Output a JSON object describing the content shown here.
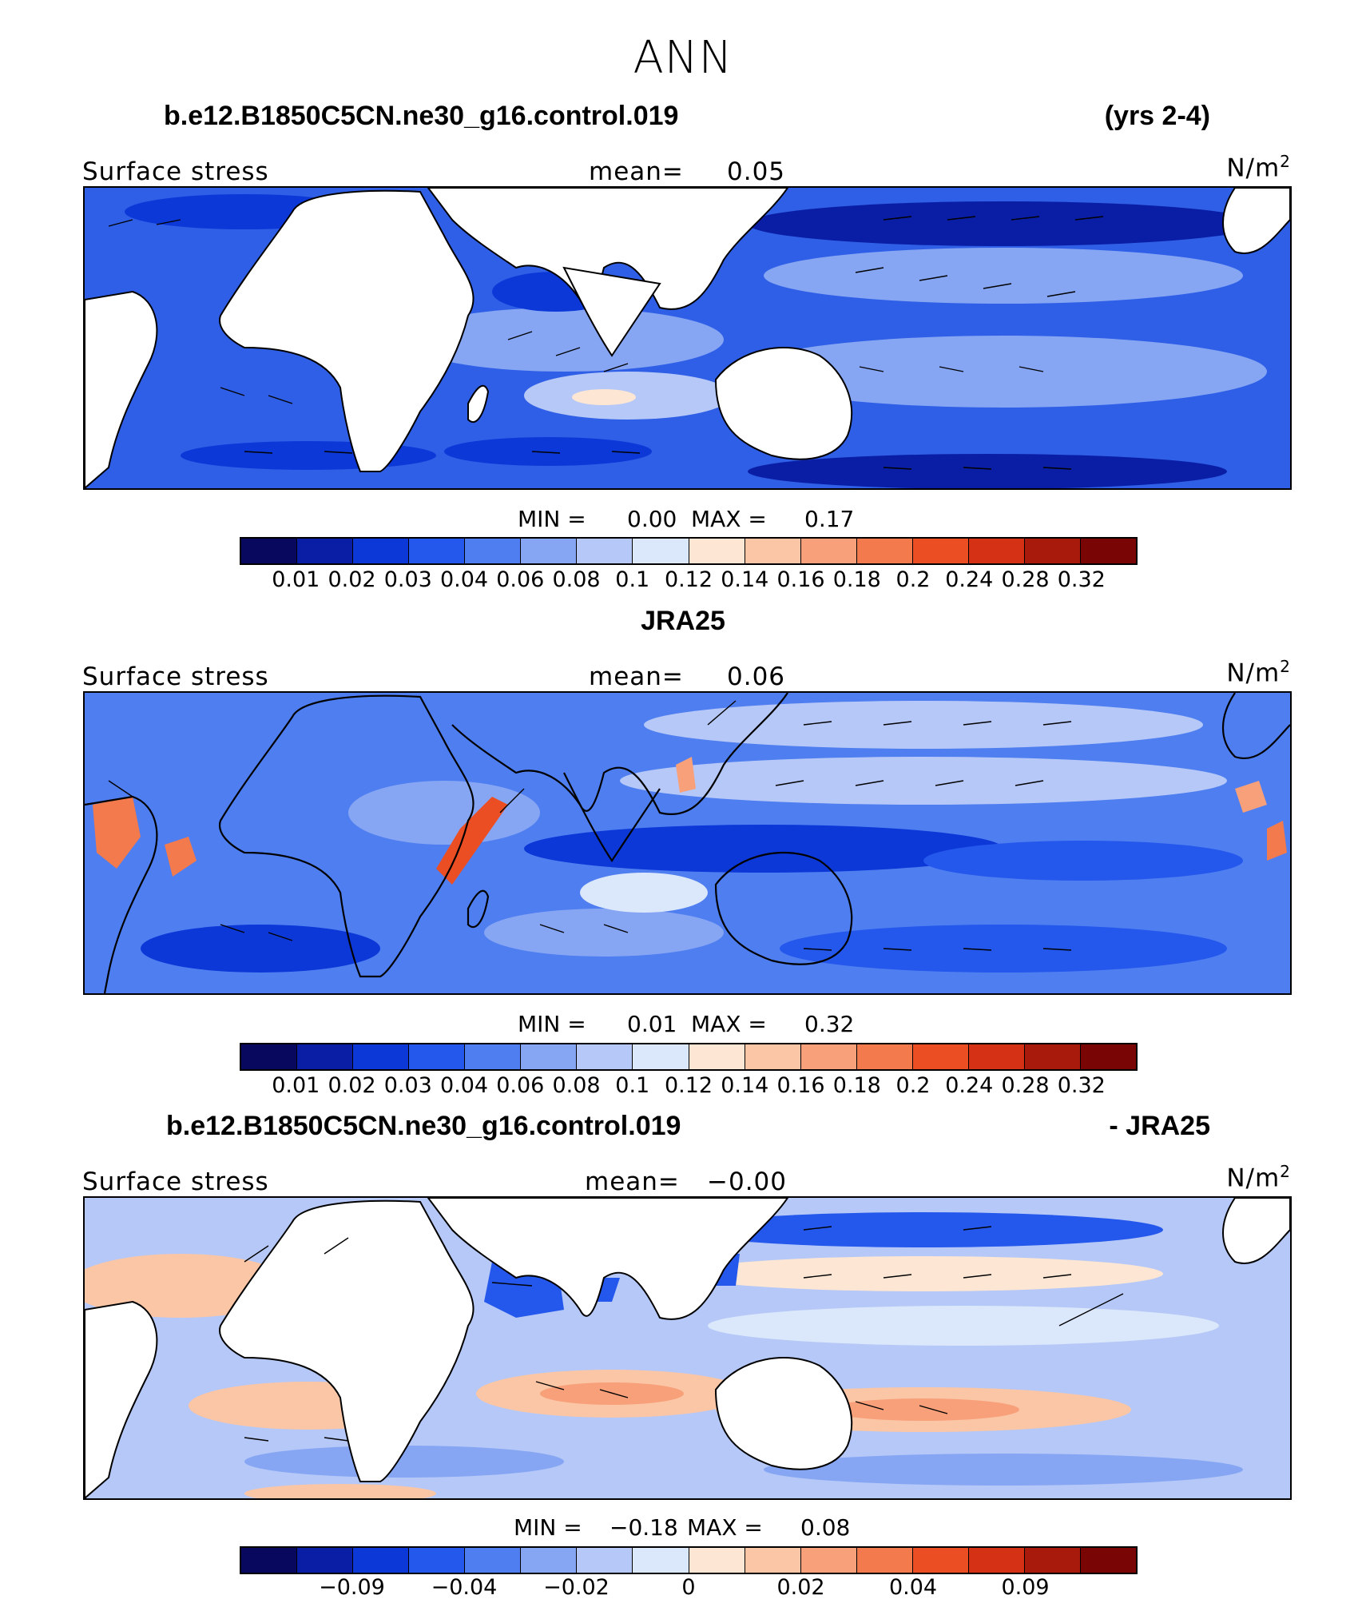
{
  "figure": {
    "title": "ANN",
    "colors": {
      "land": "#ffffff",
      "outline": "#000000",
      "scale": [
        "#08085e",
        "#0a1ea5",
        "#0c38d8",
        "#2457ec",
        "#4f7ef0",
        "#86a6f4",
        "#b5c8f7",
        "#dbe7fb",
        "#fde6d3",
        "#fbc6a6",
        "#f7a07a",
        "#f27a4c",
        "#ec4e24",
        "#d53114",
        "#a81b0c",
        "#7a0505"
      ]
    }
  },
  "panels": [
    {
      "case_title": "b.e12.B1850C5CN.ne30_g16.control.019",
      "case_subtitle": "(yrs 2-4)",
      "variable_label": "Surface stress",
      "mean_label": "mean=",
      "mean_value": "0.05",
      "units_base": "N/m",
      "units_exp": "2",
      "min_label": "MIN =",
      "min_value": "0.00",
      "max_label": "MAX =",
      "max_value": "0.17",
      "colorbar_ticks": [
        "0.01",
        "0.02",
        "0.03",
        "0.04",
        "0.06",
        "0.08",
        "0.1",
        "0.12",
        "0.14",
        "0.16",
        "0.18",
        "0.2",
        "0.24",
        "0.28",
        "0.32"
      ]
    },
    {
      "case_title": "JRA25",
      "case_subtitle": "",
      "variable_label": "Surface stress",
      "mean_label": "mean=",
      "mean_value": "0.06",
      "units_base": "N/m",
      "units_exp": "2",
      "min_label": "MIN =",
      "min_value": "0.01",
      "max_label": "MAX =",
      "max_value": "0.32",
      "colorbar_ticks": [
        "0.01",
        "0.02",
        "0.03",
        "0.04",
        "0.06",
        "0.08",
        "0.1",
        "0.12",
        "0.14",
        "0.16",
        "0.18",
        "0.2",
        "0.24",
        "0.28",
        "0.32"
      ]
    },
    {
      "case_title": "b.e12.B1850C5CN.ne30_g16.control.019",
      "case_subtitle": "- JRA25",
      "variable_label": "Surface stress",
      "mean_label": "mean=",
      "mean_value": "−0.00",
      "units_base": "N/m",
      "units_exp": "2",
      "min_label": "MIN =",
      "min_value": "−0.18",
      "max_label": "MAX =",
      "max_value": "0.08",
      "colorbar_ticks": [
        "−0.09",
        "−0.04",
        "−0.02",
        "0",
        "0.02",
        "0.04",
        "0.09"
      ]
    }
  ]
}
